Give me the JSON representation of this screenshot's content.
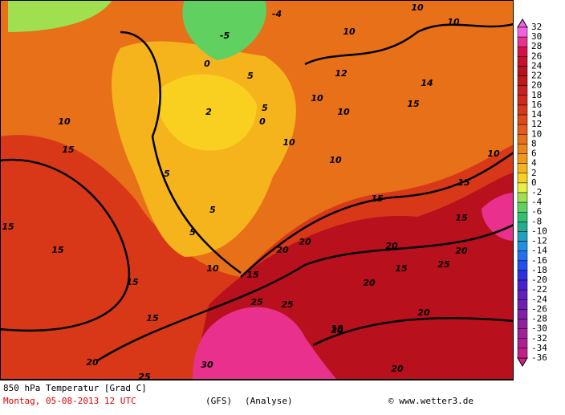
{
  "map": {
    "title": "850 hPa Temperatur [Grad C]",
    "date": "Montag, 05-08-2013  12 UTC",
    "model": "(GFS)",
    "run": "(Analyse)",
    "credit": "© www.wetter3.de",
    "contour_labels": [
      10,
      10,
      10,
      10,
      15,
      15,
      15,
      15,
      15,
      20,
      25,
      30,
      25,
      25,
      20,
      20,
      20,
      20,
      20,
      15,
      15,
      10,
      5,
      5,
      5,
      5,
      5,
      0,
      10,
      10,
      10,
      10,
      15,
      15,
      15,
      15,
      10,
      25,
      20,
      20,
      20,
      0,
      -5,
      -4,
      2,
      12,
      14,
      18
    ],
    "legend": {
      "labels": [
        32,
        30,
        28,
        26,
        24,
        22,
        20,
        18,
        16,
        14,
        12,
        10,
        8,
        6,
        4,
        2,
        0,
        -2,
        -4,
        -6,
        -8,
        -10,
        -12,
        -14,
        -16,
        -18,
        -20,
        -22,
        -24,
        -26,
        -28,
        -30,
        -32,
        -34,
        -36
      ],
      "colors": [
        "#f060e0",
        "#e8308c",
        "#d81048",
        "#c8102a",
        "#b8101c",
        "#c01818",
        "#c82020",
        "#d02a1a",
        "#d83818",
        "#e04818",
        "#e45c18",
        "#e87018",
        "#ee8418",
        "#f29a18",
        "#f6b41c",
        "#fad020",
        "#e8f040",
        "#a0e050",
        "#60d060",
        "#30c070",
        "#20b090",
        "#20a0c0",
        "#2090e0",
        "#2070f0",
        "#2050f0",
        "#3030e0",
        "#4820d0",
        "#6020c0",
        "#7020b0",
        "#8020a8",
        "#9020a0",
        "#a02098",
        "#b02090",
        "#c02088",
        "#d02080"
      ]
    }
  }
}
